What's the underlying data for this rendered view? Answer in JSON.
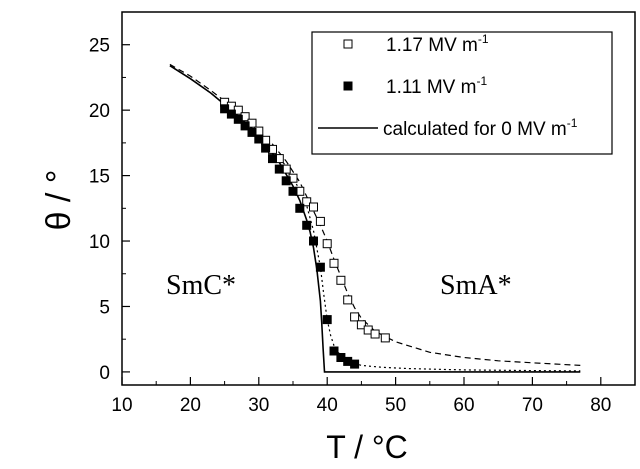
{
  "chart_data": {
    "type": "scatter",
    "xlabel": "T / °C",
    "ylabel": "θ / °",
    "xlim": [
      10,
      85
    ],
    "ylim": [
      -1,
      27.5
    ],
    "x_ticks": [
      10,
      20,
      30,
      40,
      50,
      60,
      70,
      80
    ],
    "y_ticks": [
      0,
      5,
      10,
      15,
      20,
      25
    ],
    "grid": false,
    "legend_position": "top-right",
    "annotations": [
      "SmC*",
      "SmA*"
    ],
    "series": [
      {
        "name": "1.17 MV m",
        "name_superscript": "-1",
        "marker": "open-square",
        "x": [
          25.0,
          26.0,
          27.0,
          28.0,
          29.0,
          30.0,
          31.0,
          32.0,
          33.0,
          34.0,
          35.0,
          36.0,
          37.0,
          38.0,
          39.0,
          40.0,
          41.0,
          42.0,
          43.0,
          44.0,
          45.0,
          46.0,
          47.0,
          48.5
        ],
        "y": [
          20.6,
          20.3,
          20.0,
          19.5,
          19.0,
          18.4,
          17.7,
          17.0,
          16.3,
          15.5,
          14.8,
          13.8,
          13.0,
          12.6,
          11.5,
          9.8,
          8.3,
          7.0,
          5.5,
          4.2,
          3.6,
          3.2,
          2.9,
          2.6
        ]
      },
      {
        "name": "1.11 MV m",
        "name_superscript": "-1",
        "marker": "filled-square",
        "x": [
          25.0,
          26.0,
          27.0,
          28.0,
          29.0,
          30.0,
          31.0,
          32.0,
          33.0,
          34.0,
          35.0,
          36.0,
          37.0,
          38.0,
          39.0,
          40.0,
          41.0,
          42.0,
          43.0,
          44.0
        ],
        "y": [
          20.1,
          19.7,
          19.3,
          18.8,
          18.3,
          17.8,
          17.1,
          16.3,
          15.5,
          14.6,
          13.8,
          12.5,
          11.2,
          10.0,
          8.0,
          4.0,
          1.6,
          1.1,
          0.8,
          0.6
        ]
      },
      {
        "name": "calculated for 0 MV m",
        "name_superscript": "-1",
        "marker": "solid-line",
        "x": [
          17,
          20,
          23,
          26,
          29,
          31,
          33,
          35,
          36,
          37,
          37.5,
          38,
          38.5,
          39,
          39.2,
          39.4,
          39.6,
          40,
          77
        ],
        "y": [
          23.4,
          22.4,
          21.3,
          20.0,
          18.6,
          17.4,
          16.0,
          14.2,
          13.1,
          11.6,
          10.7,
          9.5,
          7.8,
          5.4,
          3.8,
          1.8,
          0,
          0,
          0
        ]
      },
      {
        "marker": "dashed-line",
        "x": [
          17,
          20,
          23,
          26,
          29,
          32,
          34,
          36,
          37,
          38,
          39,
          40,
          41,
          42,
          43,
          44,
          45,
          47,
          50,
          55,
          60,
          65,
          70,
          77
        ],
        "y": [
          23.5,
          22.6,
          21.5,
          20.3,
          19.0,
          17.4,
          16.1,
          14.5,
          13.4,
          12.3,
          11.2,
          10.0,
          8.6,
          7.3,
          6.0,
          4.9,
          4.1,
          3.1,
          2.3,
          1.5,
          1.1,
          0.85,
          0.7,
          0.5
        ]
      },
      {
        "marker": "dotted-line",
        "x": [
          17,
          20,
          23,
          26,
          29,
          32,
          34,
          36,
          37,
          38,
          39,
          39.5,
          40,
          40.5,
          41,
          42,
          43,
          45,
          48,
          52,
          60,
          70,
          77
        ],
        "y": [
          23.4,
          22.4,
          21.3,
          20.0,
          18.6,
          17.0,
          15.7,
          13.9,
          12.7,
          10.8,
          8.0,
          5.9,
          4.0,
          2.8,
          2.0,
          1.2,
          0.8,
          0.5,
          0.35,
          0.25,
          0.15,
          0.1,
          0.08
        ]
      }
    ]
  }
}
